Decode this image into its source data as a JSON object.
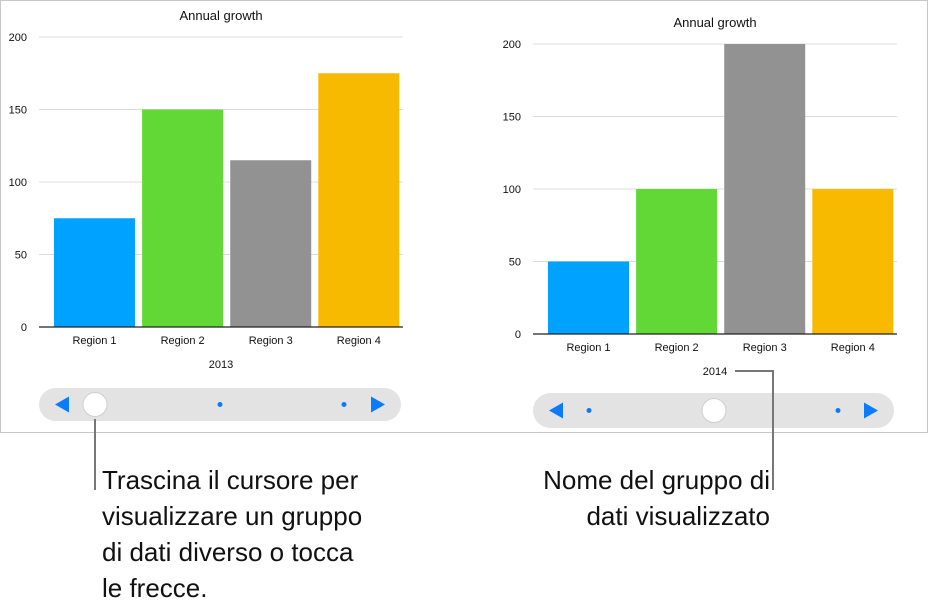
{
  "chart_data": [
    {
      "type": "bar",
      "title": "Annual growth",
      "group_label": "2013",
      "categories": [
        "Region 1",
        "Region 2",
        "Region 3",
        "Region 4"
      ],
      "values": [
        75,
        150,
        115,
        175
      ],
      "colors": [
        "#00a2ff",
        "#61d836",
        "#929292",
        "#f8ba00"
      ],
      "yticks": [
        0,
        50,
        100,
        150,
        200
      ],
      "ylim": [
        0,
        200
      ],
      "grid": true,
      "slider": {
        "position_index": 0,
        "dots": 3
      }
    },
    {
      "type": "bar",
      "title": "Annual growth",
      "group_label": "2014",
      "categories": [
        "Region 1",
        "Region 2",
        "Region 3",
        "Region 4"
      ],
      "values": [
        50,
        100,
        200,
        100
      ],
      "colors": [
        "#00a2ff",
        "#61d836",
        "#929292",
        "#f8ba00"
      ],
      "yticks": [
        0,
        50,
        100,
        150,
        200
      ],
      "ylim": [
        0,
        200
      ],
      "grid": true,
      "slider": {
        "position_index": 1,
        "dots": 3
      }
    }
  ],
  "accent_color": "#0a7aff",
  "callouts": {
    "left": [
      "Trascina il cursore per",
      "visualizzare un gruppo",
      "di dati diverso o tocca",
      "le frecce."
    ],
    "right": [
      "Nome del gruppo di",
      "dati visualizzato"
    ]
  }
}
